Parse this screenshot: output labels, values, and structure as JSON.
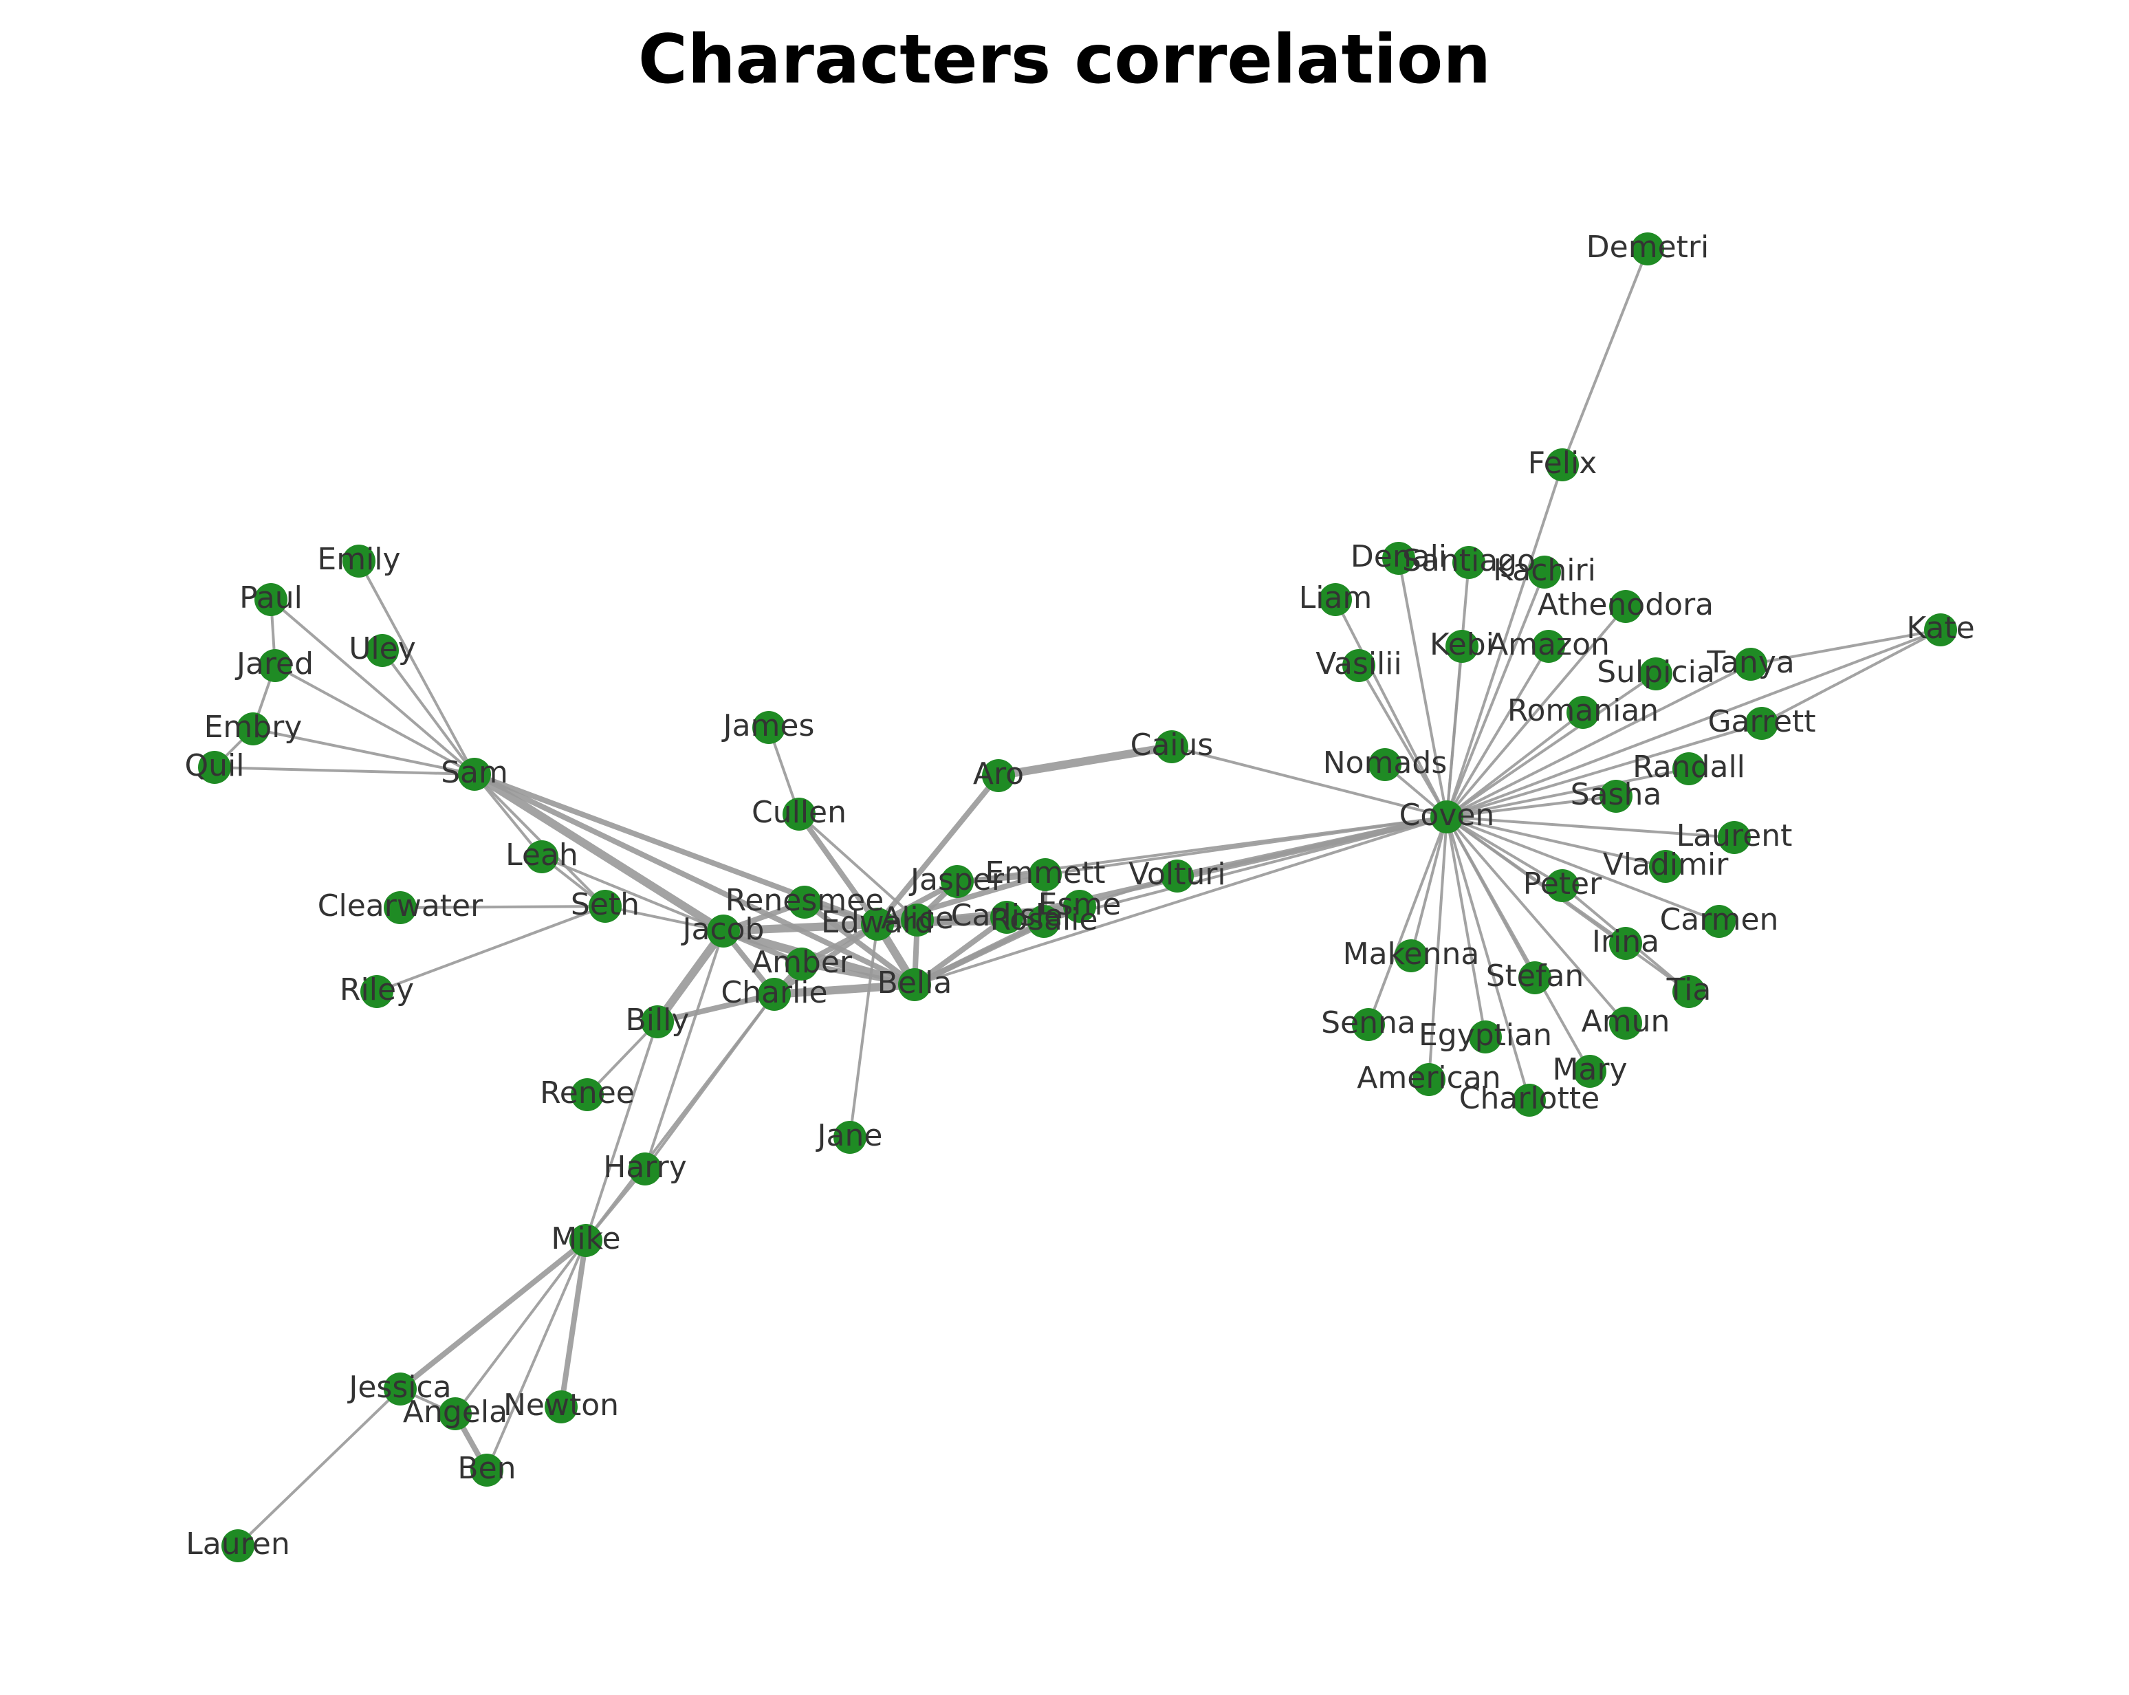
{
  "title": "Characters correlation",
  "colors": {
    "node": "#1f8b24",
    "edge": "#999999",
    "label": "#333333"
  },
  "nodes": [
    {
      "id": "Demetri",
      "label": "Demetri"
    },
    {
      "id": "Felix",
      "label": "Felix"
    },
    {
      "id": "Emily",
      "label": "Emily"
    },
    {
      "id": "Paul",
      "label": "Paul"
    },
    {
      "id": "Uley",
      "label": "Uley"
    },
    {
      "id": "Jared",
      "label": "Jared"
    },
    {
      "id": "Embry",
      "label": "Embry"
    },
    {
      "id": "Quil",
      "label": "Quil"
    },
    {
      "id": "Sam",
      "label": "Sam"
    },
    {
      "id": "Leah",
      "label": "Leah"
    },
    {
      "id": "Clearwater",
      "label": "Clearwater"
    },
    {
      "id": "Seth",
      "label": "Seth"
    },
    {
      "id": "Riley",
      "label": "Riley"
    },
    {
      "id": "James",
      "label": "James"
    },
    {
      "id": "Cullen",
      "label": "Cullen"
    },
    {
      "id": "Renesmee",
      "label": "Renesmee"
    },
    {
      "id": "Jacob",
      "label": "Jacob"
    },
    {
      "id": "Edward",
      "label": "Edward"
    },
    {
      "id": "Alice",
      "label": "Alice"
    },
    {
      "id": "Amber",
      "label": "Amber"
    },
    {
      "id": "Charlie",
      "label": "Charlie"
    },
    {
      "id": "Billy",
      "label": "Billy"
    },
    {
      "id": "Bella",
      "label": "Bella"
    },
    {
      "id": "Renee",
      "label": "Renee"
    },
    {
      "id": "Jane",
      "label": "Jane"
    },
    {
      "id": "Harry",
      "label": "Harry"
    },
    {
      "id": "Mike",
      "label": "Mike"
    },
    {
      "id": "Jessica",
      "label": "Jessica"
    },
    {
      "id": "Angela",
      "label": "Angela"
    },
    {
      "id": "Newton",
      "label": "Newton"
    },
    {
      "id": "Ben",
      "label": "Ben"
    },
    {
      "id": "Lauren",
      "label": "Lauren"
    },
    {
      "id": "Aro",
      "label": "Aro"
    },
    {
      "id": "Caius",
      "label": "Caius"
    },
    {
      "id": "Jasper",
      "label": "Jasper"
    },
    {
      "id": "Emmett",
      "label": "Emmett"
    },
    {
      "id": "Carlisle",
      "label": "Carlisle"
    },
    {
      "id": "Rosalie",
      "label": "Rosalie"
    },
    {
      "id": "Esme",
      "label": "Esme"
    },
    {
      "id": "Volturi",
      "label": "Volturi"
    },
    {
      "id": "Coven",
      "label": "Coven"
    },
    {
      "id": "Denali",
      "label": "Denali"
    },
    {
      "id": "Santiago",
      "label": "Santiago"
    },
    {
      "id": "Kachiri",
      "label": "Kachiri"
    },
    {
      "id": "Liam",
      "label": "Liam"
    },
    {
      "id": "Athenodora",
      "label": "Athenodora"
    },
    {
      "id": "Kebi",
      "label": "Kebi"
    },
    {
      "id": "Amazon",
      "label": "Amazon"
    },
    {
      "id": "Vasilii",
      "label": "Vasilii"
    },
    {
      "id": "Sulpicia",
      "label": "Sulpicia"
    },
    {
      "id": "Tanya",
      "label": "Tanya"
    },
    {
      "id": "Kate",
      "label": "Kate"
    },
    {
      "id": "Romanian",
      "label": "Romanian"
    },
    {
      "id": "Garrett",
      "label": "Garrett"
    },
    {
      "id": "Nomads",
      "label": "Nomads"
    },
    {
      "id": "Randall",
      "label": "Randall"
    },
    {
      "id": "Sasha",
      "label": "Sasha"
    },
    {
      "id": "Laurent",
      "label": "Laurent"
    },
    {
      "id": "Vladimir",
      "label": "Vladimir"
    },
    {
      "id": "Peter",
      "label": "Peter"
    },
    {
      "id": "Carmen",
      "label": "Carmen"
    },
    {
      "id": "Irina",
      "label": "Irina"
    },
    {
      "id": "Makenna",
      "label": "Makenna"
    },
    {
      "id": "Stefan",
      "label": "Stefan"
    },
    {
      "id": "Tia",
      "label": "Tia"
    },
    {
      "id": "Senna",
      "label": "Senna"
    },
    {
      "id": "Egyptian",
      "label": "Egyptian"
    },
    {
      "id": "Amun",
      "label": "Amun"
    },
    {
      "id": "Mary",
      "label": "Mary"
    },
    {
      "id": "American",
      "label": "American"
    },
    {
      "id": "Charlotte",
      "label": "Charlotte"
    }
  ],
  "edges": [
    {
      "source": "Demetri",
      "target": "Felix",
      "weight": 1
    },
    {
      "source": "Felix",
      "target": "Coven",
      "weight": 1
    },
    {
      "source": "Emily",
      "target": "Sam",
      "weight": 1
    },
    {
      "source": "Paul",
      "target": "Jared",
      "weight": 1
    },
    {
      "source": "Paul",
      "target": "Sam",
      "weight": 1
    },
    {
      "source": "Uley",
      "target": "Sam",
      "weight": 1
    },
    {
      "source": "Jared",
      "target": "Embry",
      "weight": 1
    },
    {
      "source": "Jared",
      "target": "Sam",
      "weight": 1
    },
    {
      "source": "Embry",
      "target": "Quil",
      "weight": 1
    },
    {
      "source": "Embry",
      "target": "Sam",
      "weight": 1
    },
    {
      "source": "Quil",
      "target": "Sam",
      "weight": 1
    },
    {
      "source": "Sam",
      "target": "Leah",
      "weight": 1
    },
    {
      "source": "Sam",
      "target": "Seth",
      "weight": 1
    },
    {
      "source": "Sam",
      "target": "Jacob",
      "weight": 3
    },
    {
      "source": "Sam",
      "target": "Edward",
      "weight": 2
    },
    {
      "source": "Sam",
      "target": "Bella",
      "weight": 2
    },
    {
      "source": "Leah",
      "target": "Seth",
      "weight": 1
    },
    {
      "source": "Leah",
      "target": "Jacob",
      "weight": 1
    },
    {
      "source": "Clearwater",
      "target": "Seth",
      "weight": 1
    },
    {
      "source": "Seth",
      "target": "Jacob",
      "weight": 1
    },
    {
      "source": "Riley",
      "target": "Seth",
      "weight": 1
    },
    {
      "source": "James",
      "target": "Cullen",
      "weight": 1
    },
    {
      "source": "Cullen",
      "target": "Edward",
      "weight": 2
    },
    {
      "source": "Cullen",
      "target": "Alice",
      "weight": 1
    },
    {
      "source": "Renesmee",
      "target": "Jacob",
      "weight": 2
    },
    {
      "source": "Renesmee",
      "target": "Edward",
      "weight": 2
    },
    {
      "source": "Renesmee",
      "target": "Bella",
      "weight": 2
    },
    {
      "source": "Jacob",
      "target": "Edward",
      "weight": 3
    },
    {
      "source": "Jacob",
      "target": "Bella",
      "weight": 3
    },
    {
      "source": "Jacob",
      "target": "Charlie",
      "weight": 2
    },
    {
      "source": "Jacob",
      "target": "Billy",
      "weight": 3
    },
    {
      "source": "Jacob",
      "target": "Amber",
      "weight": 2
    },
    {
      "source": "Jacob",
      "target": "Harry",
      "weight": 1
    },
    {
      "source": "Edward",
      "target": "Alice",
      "weight": 3
    },
    {
      "source": "Edward",
      "target": "Bella",
      "weight": 3
    },
    {
      "source": "Edward",
      "target": "Amber",
      "weight": 2
    },
    {
      "source": "Edward",
      "target": "Jasper",
      "weight": 2
    },
    {
      "source": "Edward",
      "target": "Emmett",
      "weight": 2
    },
    {
      "source": "Edward",
      "target": "Carlisle",
      "weight": 3
    },
    {
      "source": "Edward",
      "target": "Rosalie",
      "weight": 2
    },
    {
      "source": "Edward",
      "target": "Esme",
      "weight": 2
    },
    {
      "source": "Edward",
      "target": "Charlie",
      "weight": 2
    },
    {
      "source": "Edward",
      "target": "Jane",
      "weight": 1
    },
    {
      "source": "Edward",
      "target": "Aro",
      "weight": 2
    },
    {
      "source": "Alice",
      "target": "Jasper",
      "weight": 2
    },
    {
      "source": "Alice",
      "target": "Bella",
      "weight": 2
    },
    {
      "source": "Alice",
      "target": "Rosalie",
      "weight": 2
    },
    {
      "source": "Bella",
      "target": "Charlie",
      "weight": 3
    },
    {
      "source": "Bella",
      "target": "Carlisle",
      "weight": 2
    },
    {
      "source": "Bella",
      "target": "Rosalie",
      "weight": 2
    },
    {
      "source": "Bella",
      "target": "Esme",
      "weight": 2
    },
    {
      "source": "Bella",
      "target": "Coven",
      "weight": 1
    },
    {
      "source": "Amber",
      "target": "Charlie",
      "weight": 2
    },
    {
      "source": "Amber",
      "target": "Bella",
      "weight": 2
    },
    {
      "source": "Charlie",
      "target": "Billy",
      "weight": 2
    },
    {
      "source": "Charlie",
      "target": "Harry",
      "weight": 1
    },
    {
      "source": "Charlie",
      "target": "Mike",
      "weight": 1
    },
    {
      "source": "Billy",
      "target": "Renee",
      "weight": 1
    },
    {
      "source": "Billy",
      "target": "Mike",
      "weight": 1
    },
    {
      "source": "Harry",
      "target": "Mike",
      "weight": 1
    },
    {
      "source": "Mike",
      "target": "Jessica",
      "weight": 2
    },
    {
      "source": "Mike",
      "target": "Angela",
      "weight": 1
    },
    {
      "source": "Mike",
      "target": "Newton",
      "weight": 2
    },
    {
      "source": "Mike",
      "target": "Ben",
      "weight": 1
    },
    {
      "source": "Jessica",
      "target": "Angela",
      "weight": 1
    },
    {
      "source": "Jessica",
      "target": "Lauren",
      "weight": 1
    },
    {
      "source": "Angela",
      "target": "Ben",
      "weight": 2
    },
    {
      "source": "Aro",
      "target": "Caius",
      "weight": 3
    },
    {
      "source": "Caius",
      "target": "Coven",
      "weight": 1
    },
    {
      "source": "Jasper",
      "target": "Emmett",
      "weight": 2
    },
    {
      "source": "Jasper",
      "target": "Coven",
      "weight": 1
    },
    {
      "source": "Emmett",
      "target": "Rosalie",
      "weight": 2
    },
    {
      "source": "Emmett",
      "target": "Coven",
      "weight": 1
    },
    {
      "source": "Carlisle",
      "target": "Esme",
      "weight": 2
    },
    {
      "source": "Carlisle",
      "target": "Coven",
      "weight": 2
    },
    {
      "source": "Rosalie",
      "target": "Esme",
      "weight": 2
    },
    {
      "source": "Rosalie",
      "target": "Coven",
      "weight": 1
    },
    {
      "source": "Esme",
      "target": "Volturi",
      "weight": 1
    },
    {
      "source": "Volturi",
      "target": "Coven",
      "weight": 2
    },
    {
      "source": "Coven",
      "target": "Denali",
      "weight": 1
    },
    {
      "source": "Coven",
      "target": "Santiago",
      "weight": 1
    },
    {
      "source": "Coven",
      "target": "Kachiri",
      "weight": 1
    },
    {
      "source": "Coven",
      "target": "Liam",
      "weight": 1
    },
    {
      "source": "Coven",
      "target": "Athenodora",
      "weight": 1
    },
    {
      "source": "Coven",
      "target": "Kebi",
      "weight": 1
    },
    {
      "source": "Coven",
      "target": "Amazon",
      "weight": 1
    },
    {
      "source": "Coven",
      "target": "Vasilii",
      "weight": 1
    },
    {
      "source": "Coven",
      "target": "Sulpicia",
      "weight": 1
    },
    {
      "source": "Coven",
      "target": "Tanya",
      "weight": 1
    },
    {
      "source": "Coven",
      "target": "Kate",
      "weight": 1
    },
    {
      "source": "Coven",
      "target": "Romanian",
      "weight": 1
    },
    {
      "source": "Coven",
      "target": "Garrett",
      "weight": 1
    },
    {
      "source": "Coven",
      "target": "Nomads",
      "weight": 1
    },
    {
      "source": "Coven",
      "target": "Randall",
      "weight": 1
    },
    {
      "source": "Coven",
      "target": "Sasha",
      "weight": 1
    },
    {
      "source": "Coven",
      "target": "Laurent",
      "weight": 1
    },
    {
      "source": "Coven",
      "target": "Vladimir",
      "weight": 1
    },
    {
      "source": "Coven",
      "target": "Peter",
      "weight": 1
    },
    {
      "source": "Coven",
      "target": "Carmen",
      "weight": 1
    },
    {
      "source": "Coven",
      "target": "Irina",
      "weight": 1
    },
    {
      "source": "Coven",
      "target": "Makenna",
      "weight": 1
    },
    {
      "source": "Coven",
      "target": "Stefan",
      "weight": 1
    },
    {
      "source": "Coven",
      "target": "Tia",
      "weight": 1
    },
    {
      "source": "Coven",
      "target": "Senna",
      "weight": 1
    },
    {
      "source": "Coven",
      "target": "Egyptian",
      "weight": 1
    },
    {
      "source": "Coven",
      "target": "Amun",
      "weight": 1
    },
    {
      "source": "Coven",
      "target": "Mary",
      "weight": 1
    },
    {
      "source": "Coven",
      "target": "American",
      "weight": 1
    },
    {
      "source": "Coven",
      "target": "Charlotte",
      "weight": 1
    },
    {
      "source": "Tanya",
      "target": "Kate",
      "weight": 1
    },
    {
      "source": "Kate",
      "target": "Garrett",
      "weight": 1
    },
    {
      "source": "Peter",
      "target": "Tia",
      "weight": 1
    }
  ]
}
